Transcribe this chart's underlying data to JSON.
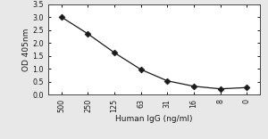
{
  "x_labels": [
    "500",
    "250",
    "125",
    "63",
    "31",
    "16",
    "8",
    "0"
  ],
  "x_positions": [
    0,
    1,
    2,
    3,
    4,
    5,
    6,
    7
  ],
  "y_values": [
    3.0,
    2.35,
    1.62,
    0.97,
    0.53,
    0.32,
    0.22,
    0.27
  ],
  "xlabel": "Human IgG (ng/ml)",
  "ylabel": "OD 405nm",
  "ylim": [
    0.0,
    3.5
  ],
  "yticks": [
    0.0,
    0.5,
    1.0,
    1.5,
    2.0,
    2.5,
    3.0,
    3.5
  ],
  "ytick_labels": [
    "0.0",
    "0.5",
    "1.0",
    "1.5",
    "2.0",
    "2.5",
    "3.0",
    "3.5"
  ],
  "line_color": "#1a1a1a",
  "marker": "D",
  "marker_color": "#1a1a1a",
  "marker_size": 3.5,
  "line_width": 0.9,
  "background_color": "#e8e8e8",
  "plot_bg_color": "#ffffff",
  "xlabel_fontsize": 6.5,
  "ylabel_fontsize": 6.5,
  "tick_fontsize": 5.8
}
